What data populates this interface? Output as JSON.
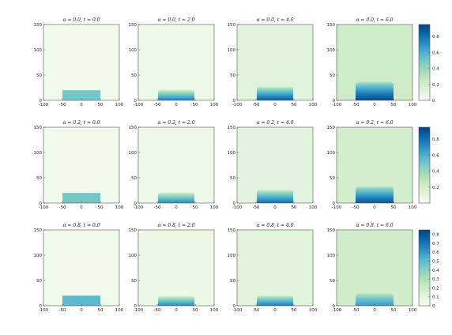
{
  "chart_data": [
    {
      "type": "heatmap",
      "rows": [
        {
          "alpha": "0.0",
          "colorbar": {
            "ticks": [
              "0.8",
              "0.6",
              "0.4",
              "0.2",
              "0"
            ],
            "range": [
              0,
              0.95
            ]
          },
          "panels": [
            {
              "title": "α = 0.0, t = 0.0",
              "t": 0,
              "max_value": 0.5,
              "height": 20,
              "half_width": 50,
              "edge_soft": 0,
              "background": 0.03
            },
            {
              "title": "α = 0.0, t = 2.0",
              "t": 2,
              "max_value": 0.75,
              "height": 22,
              "half_width": 48,
              "edge_soft": 5,
              "background": 0.05
            },
            {
              "title": "α = 0.0, t = 4.0",
              "t": 4,
              "max_value": 0.85,
              "height": 28,
              "half_width": 48,
              "edge_soft": 6,
              "background": 0.12
            },
            {
              "title": "α = 0.0, t = 6.0",
              "t": 6,
              "max_value": 0.92,
              "height": 38,
              "half_width": 50,
              "edge_soft": 8,
              "background": 0.22
            }
          ]
        },
        {
          "alpha": "0.2",
          "colorbar": {
            "ticks": [
              "0.8",
              "0.6",
              "0.4",
              "0.2"
            ],
            "range": [
              0,
              0.95
            ]
          },
          "panels": [
            {
              "title": "α = 0.2, t = 0.0",
              "t": 0,
              "max_value": 0.5,
              "height": 20,
              "half_width": 50,
              "edge_soft": 0,
              "background": 0.03
            },
            {
              "title": "α = 0.2, t = 2.0",
              "t": 2,
              "max_value": 0.72,
              "height": 22,
              "half_width": 48,
              "edge_soft": 5,
              "background": 0.05
            },
            {
              "title": "α = 0.2, t = 4.0",
              "t": 4,
              "max_value": 0.8,
              "height": 27,
              "half_width": 48,
              "edge_soft": 6,
              "background": 0.11
            },
            {
              "title": "α = 0.2, t = 6.0",
              "t": 6,
              "max_value": 0.88,
              "height": 34,
              "half_width": 50,
              "edge_soft": 8,
              "background": 0.2
            }
          ]
        },
        {
          "alpha": "0.8",
          "colorbar": {
            "ticks": [
              "0.8",
              "0.7",
              "0.6",
              "0.5",
              "0.4",
              "0.3",
              "0.2",
              "0.1",
              "0"
            ],
            "range": [
              0,
              0.85
            ]
          },
          "panels": [
            {
              "title": "α = 0.8, t = 0.0",
              "t": 0,
              "max_value": 0.5,
              "height": 20,
              "half_width": 50,
              "edge_soft": 0,
              "background": 0.03
            },
            {
              "title": "α = 0.8, t = 2.0",
              "t": 2,
              "max_value": 0.65,
              "height": 20,
              "half_width": 48,
              "edge_soft": 5,
              "background": 0.05
            },
            {
              "title": "α = 0.8, t = 4.0",
              "t": 4,
              "max_value": 0.68,
              "height": 21,
              "half_width": 48,
              "edge_soft": 6,
              "background": 0.1
            },
            {
              "title": "α = 0.8, t = 6.0",
              "t": 6,
              "max_value": 0.6,
              "height": 26,
              "half_width": 50,
              "edge_soft": 9,
              "background": 0.18
            }
          ]
        }
      ],
      "x_ticks": [
        "-100",
        "-50",
        "0",
        "50",
        "100"
      ],
      "y_ticks": [
        "0",
        "50",
        "100",
        "150"
      ],
      "xlim": [
        -100,
        100
      ],
      "ylim": [
        0,
        150
      ],
      "colormap": "GnBu"
    }
  ]
}
